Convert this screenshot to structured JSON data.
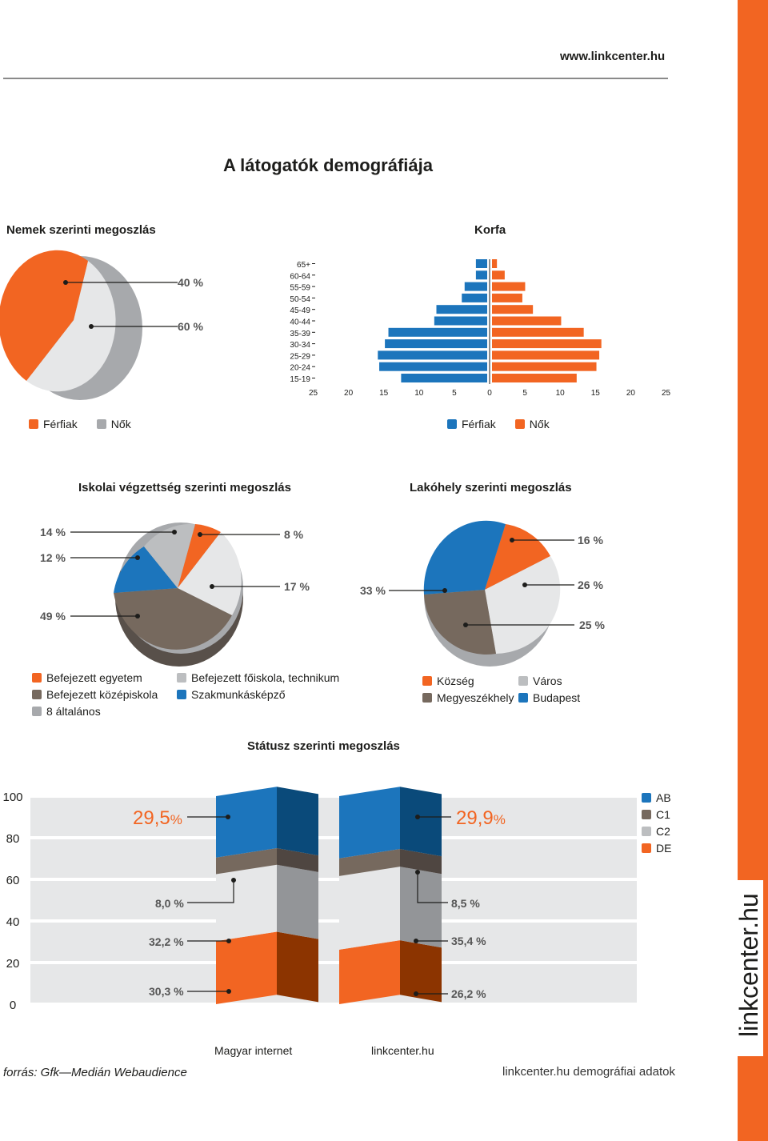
{
  "site_url": "www.linkcenter.hu",
  "main_title": "A látogatók demográfiája",
  "brand_vertical": "linkcenter.hu",
  "colors": {
    "orange": "#f26522",
    "light_gray": "#d9d9d9",
    "blue": "#1c75bc",
    "dark_blue": "#0a4a7a",
    "taupe": "#76695e",
    "mid_gray": "#a7a9ac",
    "very_light": "#e6e7e8"
  },
  "gender": {
    "title": "Nemek szerinti megoszlás",
    "labels": [
      "40 %",
      "60 %"
    ],
    "legend": [
      {
        "name": "Férfiak",
        "color": "#f26522"
      },
      {
        "name": "Nők",
        "color": "#a7a9ac"
      }
    ]
  },
  "pyramid": {
    "title": "Korfa",
    "legend": [
      {
        "name": "Férfiak",
        "color": "#1c75bc"
      },
      {
        "name": "Nők",
        "color": "#f26522"
      }
    ]
  },
  "education": {
    "title": "Iskolai végzettség szerinti megoszlás",
    "labels": [
      "14 %",
      "12 %",
      "8 %",
      "17 %",
      "49 %"
    ],
    "legend": [
      {
        "name": "Befejezett egyetem",
        "color": "#f26522"
      },
      {
        "name": "Befejezett főiskola, technikum",
        "color": "#bcbec0"
      },
      {
        "name": "Befejezett középiskola",
        "color": "#76695e"
      },
      {
        "name": "Szakmunkásképző",
        "color": "#1c75bc"
      },
      {
        "name": "8 általános",
        "color": "#a7a9ac"
      }
    ]
  },
  "residence": {
    "title": "Lakóhely szerinti megoszlás",
    "labels": [
      "16 %",
      "33 %",
      "26 %",
      "25 %"
    ],
    "legend": [
      {
        "name": "Község",
        "color": "#f26522"
      },
      {
        "name": "Város",
        "color": "#bcbec0"
      },
      {
        "name": "Megyeszékhely",
        "color": "#76695e"
      },
      {
        "name": "Budapest",
        "color": "#1c75bc"
      }
    ]
  },
  "status": {
    "title": "Státusz szerinti megoszlás",
    "y_ticks": [
      "100",
      "80",
      "60",
      "40",
      "20",
      "0"
    ],
    "legend": [
      {
        "name": "AB",
        "color": "#1c75bc"
      },
      {
        "name": "C1",
        "color": "#76695e"
      },
      {
        "name": "C2",
        "color": "#bcbec0"
      },
      {
        "name": "DE",
        "color": "#f26522"
      }
    ],
    "bar1_name": "Magyar internet",
    "bar2_name": "linkcenter.hu",
    "bar1_labels": [
      "29,5",
      "8,0 %",
      "32,2 %",
      "30,3 %"
    ],
    "bar2_labels": [
      "29,9",
      "8,5 %",
      "35,4 %",
      "26,2 %"
    ],
    "pct_suffix": "%"
  },
  "source": "forrás: Gfk—Medián Webaudience",
  "footer_right": "linkcenter.hu demográfiai adatok",
  "chart_data": [
    {
      "type": "pie",
      "title": "Nemek szerinti megoszlás",
      "labels": [
        "Férfiak",
        "Nők"
      ],
      "values": [
        40,
        60
      ]
    },
    {
      "type": "bar",
      "title": "Korfa",
      "categories": [
        "65+",
        "60-64",
        "55-59",
        "50-54",
        "45-49",
        "40-44",
        "35-39",
        "30-34",
        "25-29",
        "20-24",
        "15-19"
      ],
      "series": [
        {
          "name": "Férfiak",
          "values": [
            1.6,
            1.6,
            3.2,
            3.6,
            7.2,
            7.5,
            14,
            14.5,
            15.5,
            15.3,
            12.2
          ]
        },
        {
          "name": "Nők",
          "values": [
            0.7,
            1.8,
            4.7,
            4.3,
            5.8,
            9.8,
            13,
            15.5,
            15.2,
            14.8,
            12
          ]
        }
      ],
      "x_ticks": [
        "25",
        "20",
        "15",
        "10",
        "5",
        "0",
        "5",
        "10",
        "15",
        "20",
        "25"
      ],
      "xlim": [
        -25,
        25
      ]
    },
    {
      "type": "pie",
      "title": "Iskolai végzettség szerinti megoszlás",
      "labels": [
        "Befejezett egyetem",
        "Befejezett főiskola, technikum",
        "Befejezett középiskola",
        "Szakmunkásképző",
        "8 általános"
      ],
      "values": [
        8,
        17,
        49,
        12,
        14
      ]
    },
    {
      "type": "pie",
      "title": "Lakóhely szerinti megoszlás",
      "labels": [
        "Község",
        "Város",
        "Megyeszékhely",
        "Budapest"
      ],
      "values": [
        16,
        26,
        25,
        33
      ]
    },
    {
      "type": "bar",
      "title": "Státusz szerinti megoszlás",
      "categories": [
        "Magyar internet",
        "linkcenter.hu"
      ],
      "series": [
        {
          "name": "DE",
          "values": [
            30.3,
            26.2
          ]
        },
        {
          "name": "C2",
          "values": [
            32.2,
            35.4
          ]
        },
        {
          "name": "C1",
          "values": [
            8.0,
            8.5
          ]
        },
        {
          "name": "AB",
          "values": [
            29.5,
            29.9
          ]
        }
      ],
      "stacked": true,
      "ylim": [
        0,
        100
      ],
      "y_ticks": [
        0,
        20,
        40,
        60,
        80,
        100
      ]
    }
  ]
}
